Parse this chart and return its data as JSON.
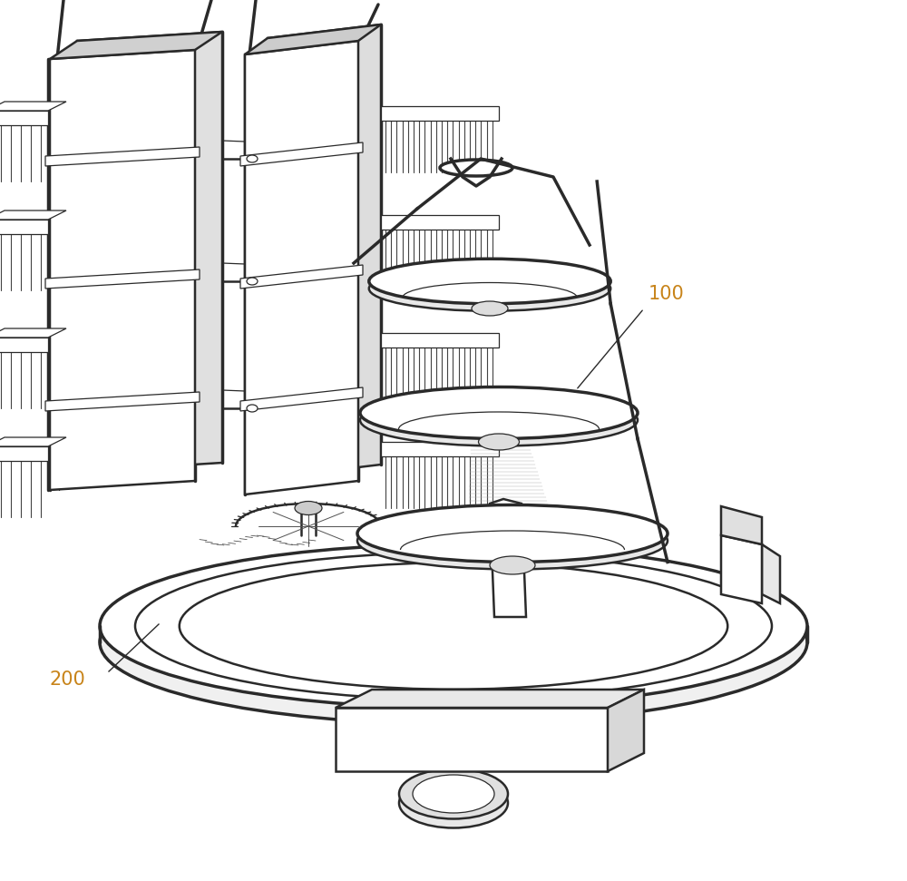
{
  "background_color": "#ffffff",
  "figure_width": 10.0,
  "figure_height": 9.71,
  "dpi": 100,
  "label_100": "100",
  "label_200": "200",
  "label_100_color": "#c8841a",
  "label_200_color": "#c8841a",
  "label_fontsize": 15,
  "line_color": "#2a2a2a",
  "line_color_light": "#555555",
  "lw_main": 1.8,
  "lw_thick": 2.5,
  "lw_thin": 0.9,
  "lw_ultra": 0.6
}
